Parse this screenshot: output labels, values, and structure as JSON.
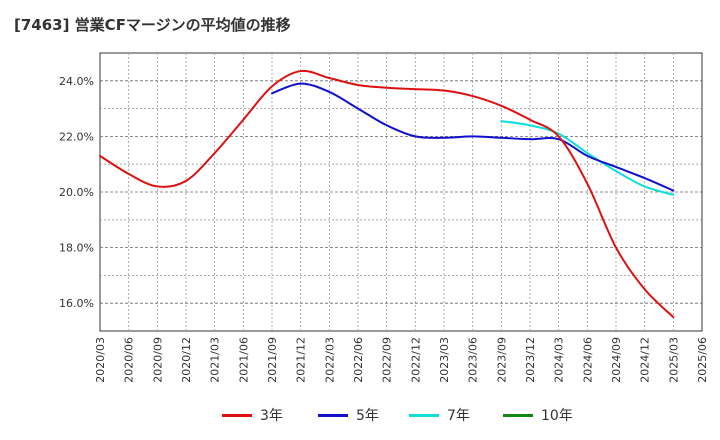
{
  "chart_data": {
    "type": "line",
    "title": "[7463]  営業CFマージンの平均値の推移",
    "xlabel": "",
    "ylabel": "",
    "categories": [
      "2020/03",
      "2020/06",
      "2020/09",
      "2020/12",
      "2021/03",
      "2021/06",
      "2021/09",
      "2021/12",
      "2022/03",
      "2022/06",
      "2022/09",
      "2022/12",
      "2023/03",
      "2023/06",
      "2023/09",
      "2023/12",
      "2024/03",
      "2024/06",
      "2024/09",
      "2024/12",
      "2025/03",
      "2025/06"
    ],
    "ylim": [
      15.0,
      25.0
    ],
    "yticks": [
      16.0,
      18.0,
      20.0,
      22.0,
      24.0
    ],
    "ytick_labels": [
      "16.0%",
      "18.0%",
      "20.0%",
      "22.0%",
      "24.0%"
    ],
    "grid": true,
    "legend_position": "bottom",
    "series": [
      {
        "name": "3年",
        "color": "#dd1111",
        "values": [
          21.3,
          20.65,
          20.2,
          20.4,
          21.4,
          22.6,
          23.8,
          24.35,
          24.1,
          23.85,
          23.75,
          23.7,
          23.65,
          23.45,
          23.1,
          22.6,
          22.0,
          20.3,
          18.0,
          16.5,
          15.5,
          null
        ]
      },
      {
        "name": "5年",
        "color": "#1111cc",
        "values": [
          null,
          null,
          null,
          null,
          null,
          null,
          23.55,
          23.9,
          23.6,
          23.0,
          22.4,
          22.0,
          21.95,
          22.0,
          21.95,
          21.9,
          21.9,
          21.3,
          20.9,
          20.5,
          20.05,
          null
        ]
      },
      {
        "name": "7年",
        "color": "#11dddd",
        "values": [
          null,
          null,
          null,
          null,
          null,
          null,
          null,
          null,
          null,
          null,
          null,
          null,
          null,
          null,
          22.55,
          22.4,
          22.1,
          21.4,
          20.75,
          20.2,
          19.9,
          null
        ]
      },
      {
        "name": "10年",
        "color": "#118811",
        "values": [
          null,
          null,
          null,
          null,
          null,
          null,
          null,
          null,
          null,
          null,
          null,
          null,
          null,
          null,
          null,
          null,
          null,
          null,
          null,
          null,
          null,
          null
        ]
      }
    ]
  }
}
